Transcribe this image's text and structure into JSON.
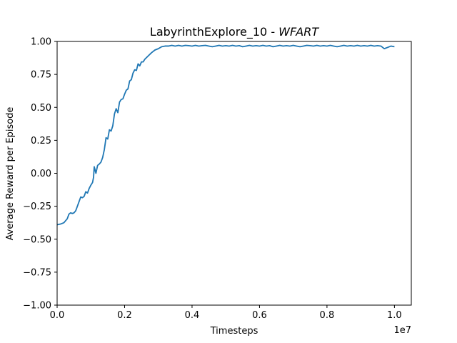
{
  "chart_data": {
    "type": "line",
    "title": "LabyrinthExplore_10 - ",
    "title_emphasis": "WFART",
    "xlabel": "Timesteps",
    "ylabel": "Average Reward per Episode",
    "x_offset_label": "1e7",
    "xlim": [
      0,
      1.05
    ],
    "ylim": [
      -1.0,
      1.0
    ],
    "x_ticks": [
      0.0,
      0.2,
      0.4,
      0.6,
      0.8,
      1.0
    ],
    "x_tick_labels": [
      "0.0",
      "0.2",
      "0.4",
      "0.6",
      "0.8",
      "1.0"
    ],
    "y_ticks": [
      -1.0,
      -0.75,
      -0.5,
      -0.25,
      0.0,
      0.25,
      0.5,
      0.75,
      1.0
    ],
    "y_tick_labels": [
      "−1.00",
      "−0.75",
      "−0.50",
      "−0.25",
      "0.00",
      "0.25",
      "0.50",
      "0.75",
      "1.00"
    ],
    "grid": false,
    "legend": false,
    "series": [
      {
        "color": "#1f77b4",
        "points": [
          [
            0.0,
            -0.39
          ],
          [
            0.01,
            -0.385
          ],
          [
            0.02,
            -0.375
          ],
          [
            0.03,
            -0.345
          ],
          [
            0.035,
            -0.31
          ],
          [
            0.04,
            -0.3
          ],
          [
            0.045,
            -0.305
          ],
          [
            0.05,
            -0.3
          ],
          [
            0.055,
            -0.285
          ],
          [
            0.06,
            -0.25
          ],
          [
            0.065,
            -0.215
          ],
          [
            0.07,
            -0.18
          ],
          [
            0.075,
            -0.185
          ],
          [
            0.08,
            -0.175
          ],
          [
            0.085,
            -0.14
          ],
          [
            0.09,
            -0.15
          ],
          [
            0.095,
            -0.115
          ],
          [
            0.1,
            -0.09
          ],
          [
            0.105,
            -0.07
          ],
          [
            0.108,
            -0.03
          ],
          [
            0.11,
            0.05
          ],
          [
            0.115,
            0.0
          ],
          [
            0.12,
            0.06
          ],
          [
            0.125,
            0.07
          ],
          [
            0.13,
            0.085
          ],
          [
            0.135,
            0.12
          ],
          [
            0.14,
            0.18
          ],
          [
            0.145,
            0.27
          ],
          [
            0.15,
            0.26
          ],
          [
            0.155,
            0.33
          ],
          [
            0.16,
            0.32
          ],
          [
            0.165,
            0.36
          ],
          [
            0.17,
            0.45
          ],
          [
            0.175,
            0.49
          ],
          [
            0.18,
            0.46
          ],
          [
            0.185,
            0.54
          ],
          [
            0.19,
            0.56
          ],
          [
            0.195,
            0.565
          ],
          [
            0.2,
            0.6
          ],
          [
            0.205,
            0.63
          ],
          [
            0.21,
            0.64
          ],
          [
            0.215,
            0.7
          ],
          [
            0.22,
            0.71
          ],
          [
            0.225,
            0.76
          ],
          [
            0.23,
            0.785
          ],
          [
            0.235,
            0.78
          ],
          [
            0.24,
            0.83
          ],
          [
            0.245,
            0.815
          ],
          [
            0.25,
            0.845
          ],
          [
            0.255,
            0.845
          ],
          [
            0.26,
            0.865
          ],
          [
            0.27,
            0.89
          ],
          [
            0.28,
            0.915
          ],
          [
            0.29,
            0.935
          ],
          [
            0.3,
            0.945
          ],
          [
            0.31,
            0.96
          ],
          [
            0.32,
            0.965
          ],
          [
            0.33,
            0.965
          ],
          [
            0.34,
            0.97
          ],
          [
            0.35,
            0.965
          ],
          [
            0.36,
            0.97
          ],
          [
            0.37,
            0.965
          ],
          [
            0.38,
            0.97
          ],
          [
            0.39,
            0.968
          ],
          [
            0.4,
            0.965
          ],
          [
            0.41,
            0.97
          ],
          [
            0.42,
            0.965
          ],
          [
            0.43,
            0.968
          ],
          [
            0.44,
            0.97
          ],
          [
            0.45,
            0.965
          ],
          [
            0.46,
            0.96
          ],
          [
            0.47,
            0.965
          ],
          [
            0.48,
            0.97
          ],
          [
            0.49,
            0.965
          ],
          [
            0.5,
            0.968
          ],
          [
            0.51,
            0.965
          ],
          [
            0.52,
            0.97
          ],
          [
            0.53,
            0.965
          ],
          [
            0.54,
            0.968
          ],
          [
            0.55,
            0.96
          ],
          [
            0.56,
            0.965
          ],
          [
            0.57,
            0.97
          ],
          [
            0.58,
            0.965
          ],
          [
            0.59,
            0.968
          ],
          [
            0.6,
            0.965
          ],
          [
            0.61,
            0.97
          ],
          [
            0.62,
            0.965
          ],
          [
            0.63,
            0.968
          ],
          [
            0.64,
            0.96
          ],
          [
            0.65,
            0.965
          ],
          [
            0.66,
            0.97
          ],
          [
            0.67,
            0.965
          ],
          [
            0.68,
            0.968
          ],
          [
            0.69,
            0.965
          ],
          [
            0.7,
            0.97
          ],
          [
            0.71,
            0.965
          ],
          [
            0.72,
            0.96
          ],
          [
            0.73,
            0.965
          ],
          [
            0.74,
            0.97
          ],
          [
            0.75,
            0.968
          ],
          [
            0.76,
            0.965
          ],
          [
            0.77,
            0.97
          ],
          [
            0.78,
            0.965
          ],
          [
            0.79,
            0.968
          ],
          [
            0.8,
            0.965
          ],
          [
            0.81,
            0.97
          ],
          [
            0.82,
            0.965
          ],
          [
            0.83,
            0.96
          ],
          [
            0.84,
            0.965
          ],
          [
            0.85,
            0.97
          ],
          [
            0.86,
            0.965
          ],
          [
            0.87,
            0.968
          ],
          [
            0.88,
            0.965
          ],
          [
            0.89,
            0.97
          ],
          [
            0.9,
            0.965
          ],
          [
            0.91,
            0.968
          ],
          [
            0.92,
            0.965
          ],
          [
            0.93,
            0.97
          ],
          [
            0.94,
            0.965
          ],
          [
            0.95,
            0.968
          ],
          [
            0.96,
            0.965
          ],
          [
            0.97,
            0.945
          ],
          [
            0.98,
            0.955
          ],
          [
            0.99,
            0.965
          ],
          [
            1.0,
            0.96
          ]
        ]
      }
    ]
  }
}
